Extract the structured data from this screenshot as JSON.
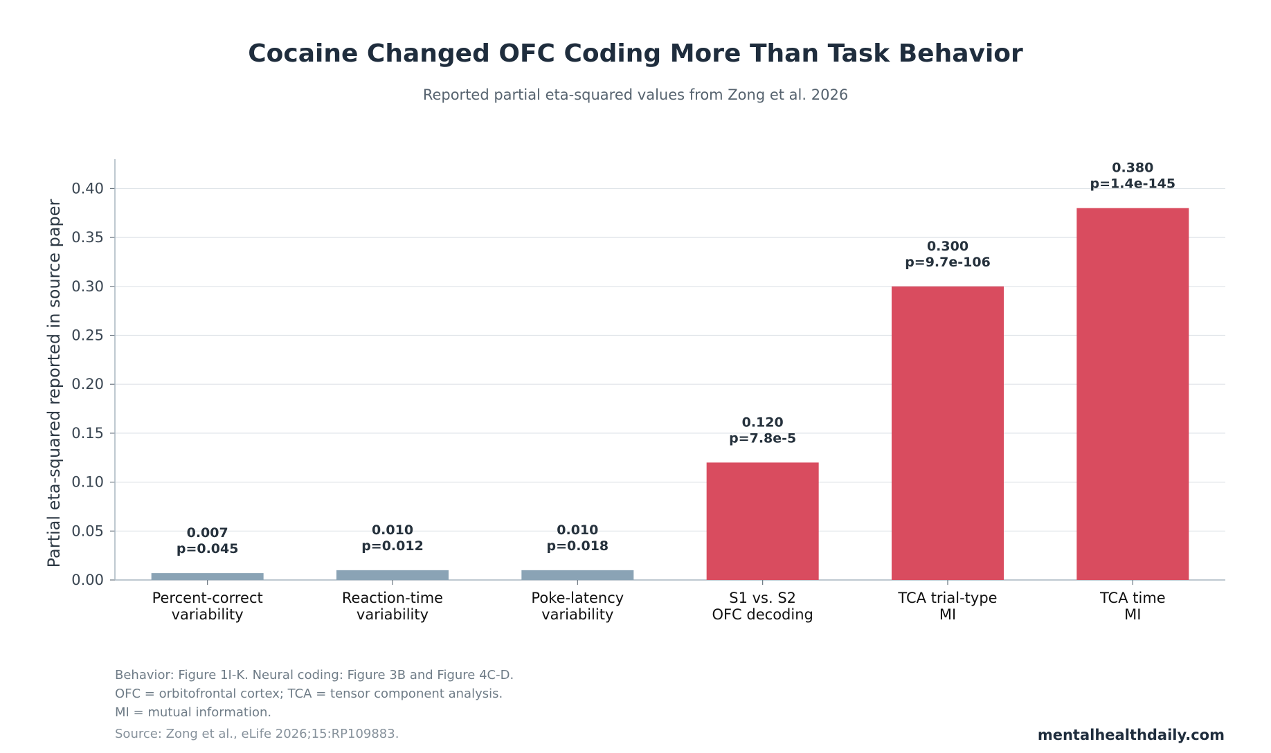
{
  "chart_data": {
    "type": "bar",
    "title": "Cocaine Changed OFC Coding More Than Task Behavior",
    "subtitle": "Reported partial eta-squared values from Zong et al. 2026",
    "xlabel": "",
    "ylabel": "Partial eta-squared reported in source paper",
    "ylim": [
      0,
      0.43
    ],
    "yticks": [
      "0.00",
      "0.05",
      "0.10",
      "0.15",
      "0.20",
      "0.25",
      "0.30",
      "0.35",
      "0.40"
    ],
    "grid": "horizontal",
    "categories": [
      [
        "Percent-correct",
        "variability"
      ],
      [
        "Reaction-time",
        "variability"
      ],
      [
        "Poke-latency",
        "variability"
      ],
      [
        "S1 vs. S2",
        "OFC decoding"
      ],
      [
        "TCA trial-type",
        "MI"
      ],
      [
        "TCA time",
        "MI"
      ]
    ],
    "values": [
      0.007,
      0.01,
      0.01,
      0.12,
      0.3,
      0.38
    ],
    "value_labels": [
      "0.007",
      "0.010",
      "0.010",
      "0.120",
      "0.300",
      "0.380"
    ],
    "p_labels": [
      "p=0.045",
      "p=0.012",
      "p=0.018",
      "p=7.8e-5",
      "p=9.7e-106",
      "p=1.4e-145"
    ],
    "groups": [
      "behavior",
      "behavior",
      "behavior",
      "neural",
      "neural",
      "neural"
    ],
    "colors": {
      "behavior": "#8aa3b5",
      "neural": "#d94c5f"
    }
  },
  "notes": [
    "Behavior: Figure 1I-K. Neural coding: Figure 3B and Figure 4C-D.",
    "OFC = orbitofrontal cortex; TCA = tensor component analysis.",
    "MI = mutual information."
  ],
  "source": "Source: Zong et al., eLife 2026;15:RP109883.",
  "brand": "mentalhealthdaily.com"
}
